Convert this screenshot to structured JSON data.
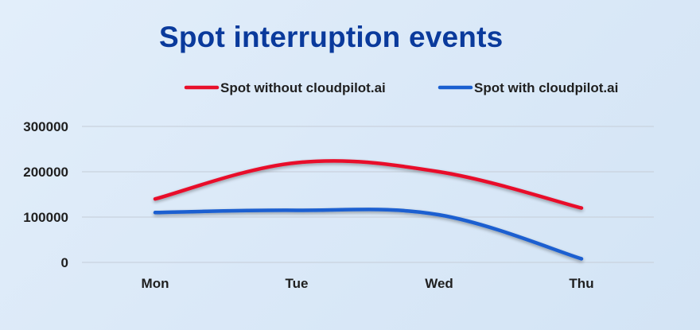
{
  "chart_data": {
    "type": "line",
    "title": "Spot interruption events",
    "categories": [
      "Mon",
      "Tue",
      "Wed",
      "Thu"
    ],
    "series": [
      {
        "name": "Spot without cloudpilot.ai",
        "color": "#e8102b",
        "values": [
          140000,
          220000,
          200000,
          120000
        ]
      },
      {
        "name": "Spot with cloudpilot.ai",
        "color": "#1a5fd0",
        "values": [
          110000,
          115000,
          105000,
          8000
        ]
      }
    ],
    "y_ticks": [
      0,
      100000,
      200000,
      300000
    ],
    "ylim": [
      0,
      300000
    ],
    "grid": "horizontal",
    "legend": "top",
    "smooth": true
  }
}
